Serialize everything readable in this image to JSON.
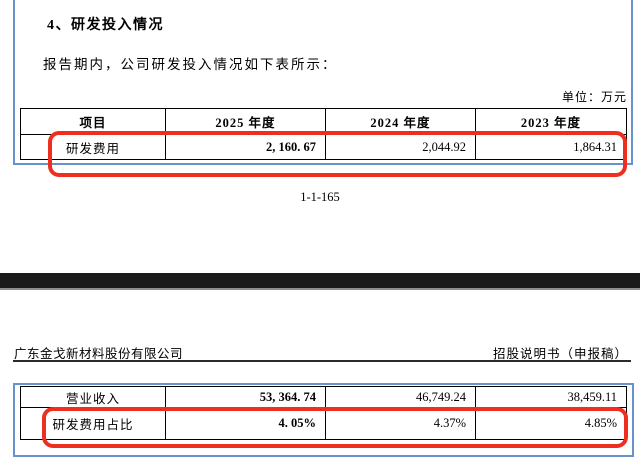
{
  "page1": {
    "section_title": "4、研发投入情况",
    "intro_text": "报告期内，公司研发投入情况如下表所示：",
    "unit_label": "单位：万元",
    "page_number": "1-1-165",
    "table": {
      "headers": [
        "项目",
        "2025 年度",
        "2024 年度",
        "2023 年度"
      ],
      "rows": [
        {
          "label": "研发费用",
          "values": [
            "2, 160. 67",
            "2,044.92",
            "1,864.31"
          ]
        }
      ]
    }
  },
  "page2": {
    "company_name": "广东金戈新材料股份有限公司",
    "doc_type_label": "招股说明书（申报稿）",
    "table": {
      "rows": [
        {
          "label": "营业收入",
          "values": [
            "53, 364. 74",
            "46,749.24",
            "38,459.11"
          ]
        },
        {
          "label": "研发费用占比",
          "values": [
            "4. 05%",
            "4.37%",
            "4.85%"
          ]
        }
      ]
    }
  },
  "annotations": {
    "highlight_color": "#ee2e1e",
    "page_border_color": "#6793cd",
    "separator_color": "#1b1b1b"
  }
}
